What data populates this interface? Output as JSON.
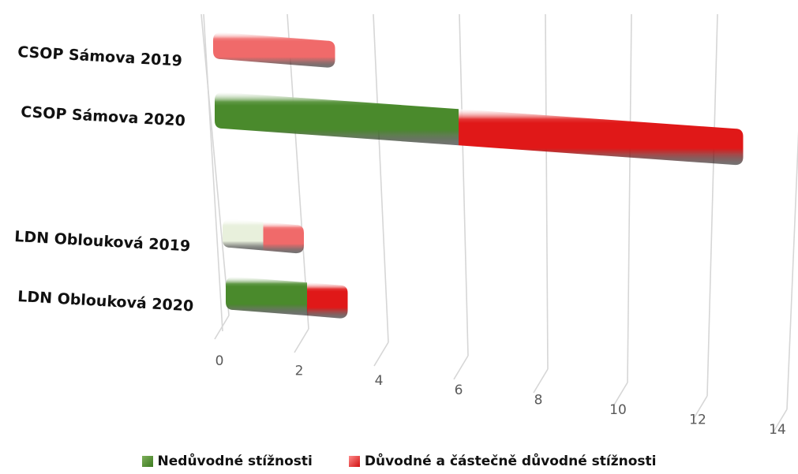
{
  "chart_data": {
    "type": "bar",
    "orientation": "horizontal",
    "stacked": true,
    "style": "3d-cylinder",
    "categories": [
      "CSOP Sámova 2019",
      "CSOP Sámova 2020",
      "LDN Oblouková 2019",
      "LDN Oblouková 2020"
    ],
    "series": [
      {
        "name": "Nedůvodné stížnosti",
        "values": [
          0,
          6,
          1,
          2
        ],
        "colors": [
          "#e8f0dc",
          "#4a8a2c",
          "#e8f0dc",
          "#4a8a2c"
        ]
      },
      {
        "name": "Důvodné a částečně důvodné stížnosti",
        "values": [
          3,
          7,
          1,
          1
        ],
        "colors": [
          "#f06a6a",
          "#e01818",
          "#f06a6a",
          "#e01818"
        ]
      }
    ],
    "xticks": [
      "0",
      "2",
      "4",
      "6",
      "8",
      "10",
      "12",
      "14"
    ],
    "xlim": [
      0,
      14
    ],
    "grid": true,
    "legend": "bottom",
    "legend_colors": [
      "#4a8a2c",
      "#e01818"
    ]
  }
}
